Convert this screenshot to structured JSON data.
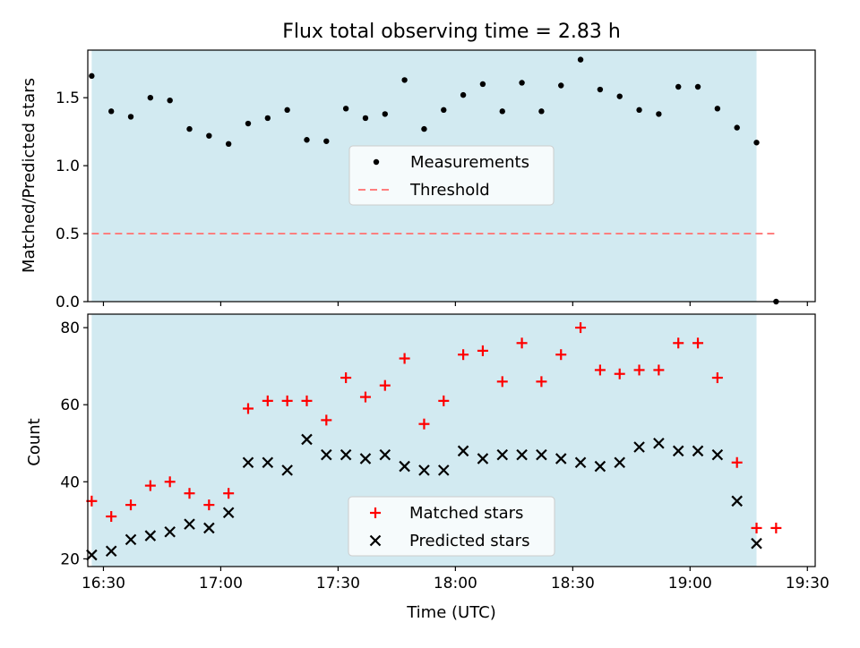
{
  "chart_data": [
    {
      "type": "scatter",
      "title": "Flux total observing time = 2.83 h",
      "ylabel": "Matched/Predicted stars",
      "xlabel": "",
      "ylim": [
        0,
        1.85
      ],
      "y_ticks": [
        0.0,
        0.5,
        1.0,
        1.5
      ],
      "y_tick_labels": [
        "0.0",
        "0.5",
        "1.0",
        "1.5"
      ],
      "x_ticks": [
        "16:30",
        "17:00",
        "17:30",
        "18:00",
        "18:30",
        "19:00",
        "19:30"
      ],
      "shaded_span": [
        "16:27",
        "19:17"
      ],
      "shade_color": "#add8e6",
      "legend_position": "center",
      "x": [
        "16:27",
        "16:32",
        "16:37",
        "16:42",
        "16:47",
        "16:52",
        "16:57",
        "17:02",
        "17:07",
        "17:12",
        "17:17",
        "17:22",
        "17:27",
        "17:32",
        "17:37",
        "17:42",
        "17:47",
        "17:52",
        "17:57",
        "18:02",
        "18:07",
        "18:12",
        "18:17",
        "18:22",
        "18:27",
        "18:32",
        "18:37",
        "18:42",
        "18:47",
        "18:52",
        "18:57",
        "19:02",
        "19:07",
        "19:12",
        "19:17",
        "19:22"
      ],
      "series": [
        {
          "name": "Measurements",
          "color": "#000000",
          "marker": "dot",
          "values": [
            1.66,
            1.4,
            1.36,
            1.5,
            1.48,
            1.27,
            1.22,
            1.16,
            1.31,
            1.35,
            1.41,
            1.19,
            1.18,
            1.42,
            1.35,
            1.38,
            1.63,
            1.27,
            1.41,
            1.52,
            1.6,
            1.4,
            1.61,
            1.4,
            1.59,
            1.78,
            1.56,
            1.51,
            1.41,
            1.38,
            1.58,
            1.58,
            1.42,
            1.28,
            1.17,
            0.0
          ]
        },
        {
          "name": "Threshold",
          "color": "#ff7f7f",
          "style": "dashed",
          "x": [
            "16:27",
            "19:22"
          ],
          "values": [
            0.5,
            0.5
          ]
        }
      ]
    },
    {
      "type": "scatter",
      "title": "",
      "ylabel": "Count",
      "xlabel": "Time (UTC)",
      "ylim": [
        18,
        83.5
      ],
      "y_ticks": [
        20,
        40,
        60,
        80
      ],
      "y_tick_labels": [
        "20",
        "40",
        "60",
        "80"
      ],
      "x_ticks": [
        "16:30",
        "17:00",
        "17:30",
        "18:00",
        "18:30",
        "19:00",
        "19:30"
      ],
      "x_tick_labels": [
        "16:30",
        "17:00",
        "17:30",
        "18:00",
        "18:30",
        "19:00",
        "19:30"
      ],
      "shaded_span": [
        "16:27",
        "19:17"
      ],
      "shade_color": "#add8e6",
      "legend_position": "lower center",
      "x": [
        "16:27",
        "16:32",
        "16:37",
        "16:42",
        "16:47",
        "16:52",
        "16:57",
        "17:02",
        "17:07",
        "17:12",
        "17:17",
        "17:22",
        "17:27",
        "17:32",
        "17:37",
        "17:42",
        "17:47",
        "17:52",
        "17:57",
        "18:02",
        "18:07",
        "18:12",
        "18:17",
        "18:22",
        "18:27",
        "18:32",
        "18:37",
        "18:42",
        "18:47",
        "18:52",
        "18:57",
        "19:02",
        "19:07",
        "19:12",
        "19:17",
        "19:22"
      ],
      "series": [
        {
          "name": "Matched stars",
          "color": "#ff0000",
          "marker": "plus",
          "values": [
            35,
            31,
            34,
            39,
            40,
            37,
            34,
            37,
            59,
            61,
            61,
            61,
            56,
            67,
            62,
            65,
            72,
            55,
            61,
            73,
            74,
            66,
            76,
            66,
            73,
            80,
            69,
            68,
            69,
            69,
            76,
            76,
            67,
            45,
            28,
            28
          ]
        },
        {
          "name": "Predicted stars",
          "color": "#000000",
          "marker": "x",
          "values": [
            21,
            22,
            25,
            26,
            27,
            29,
            28,
            32,
            45,
            45,
            43,
            51,
            47,
            47,
            46,
            47,
            44,
            43,
            43,
            48,
            46,
            47,
            47,
            47,
            46,
            45,
            44,
            45,
            49,
            50,
            48,
            48,
            47,
            35,
            24,
            null
          ]
        }
      ]
    }
  ]
}
